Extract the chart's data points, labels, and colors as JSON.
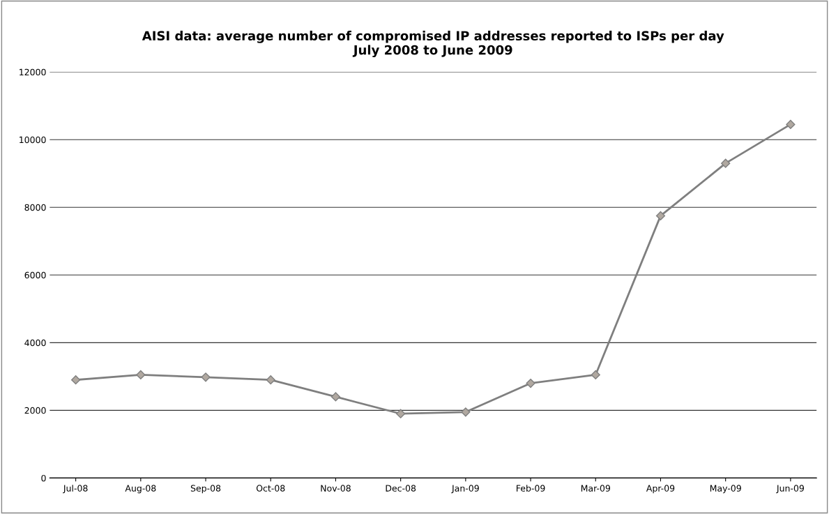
{
  "chart_data": {
    "type": "line",
    "title": "AISI data: average number of compromised IP addresses reported to ISPs per day\nJuly 2008 to June 2009",
    "categories": [
      "Jul-08",
      "Aug-08",
      "Sep-08",
      "Oct-08",
      "Nov-08",
      "Dec-08",
      "Jan-09",
      "Feb-09",
      "Mar-09",
      "Apr-09",
      "May-09",
      "Jun-09"
    ],
    "series": [
      {
        "color": "#7f7f7f",
        "values": [
          2900,
          3050,
          2980,
          2900,
          2400,
          1900,
          1950,
          2800,
          3050,
          7750,
          9300,
          10450
        ]
      }
    ],
    "ylim": [
      0,
      12000
    ],
    "yticks": [
      0,
      2000,
      4000,
      6000,
      8000,
      10000,
      12000
    ],
    "grid": "y",
    "legend": false,
    "marker": "diamond",
    "line_style": "solid"
  }
}
